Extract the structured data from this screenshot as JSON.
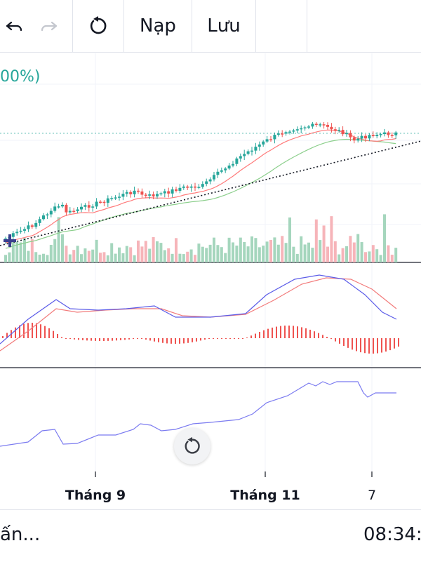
{
  "toolbar": {
    "undo_icon": "undo-icon",
    "redo_icon": "redo-icon",
    "reset_icon": "reset-icon",
    "load_label": "Nạp",
    "save_label": "Lưu"
  },
  "indicator_label": "00%)",
  "x_axis": {
    "ticks": [
      "Tháng 9",
      "Tháng 11",
      "7"
    ]
  },
  "status": {
    "left_text": "ấn...",
    "right_text": "08:34:"
  },
  "colors": {
    "up": "#26a69a",
    "down": "#ef5350",
    "volume_up": "#a5d6bd",
    "volume_down": "#f6b4b9",
    "macd_line": "#5b5ce8",
    "signal_line": "#f27b7b",
    "ma_red": "#ff7b7b",
    "ma_green": "#8ccf8c",
    "rsi_line": "#7b7bf0",
    "label_teal": "#26a69a"
  },
  "chart_data": {
    "type": "candlestick",
    "trend_start_index": 0,
    "candles": [],
    "volume": [],
    "macd": [],
    "signal": [],
    "rsi": []
  }
}
